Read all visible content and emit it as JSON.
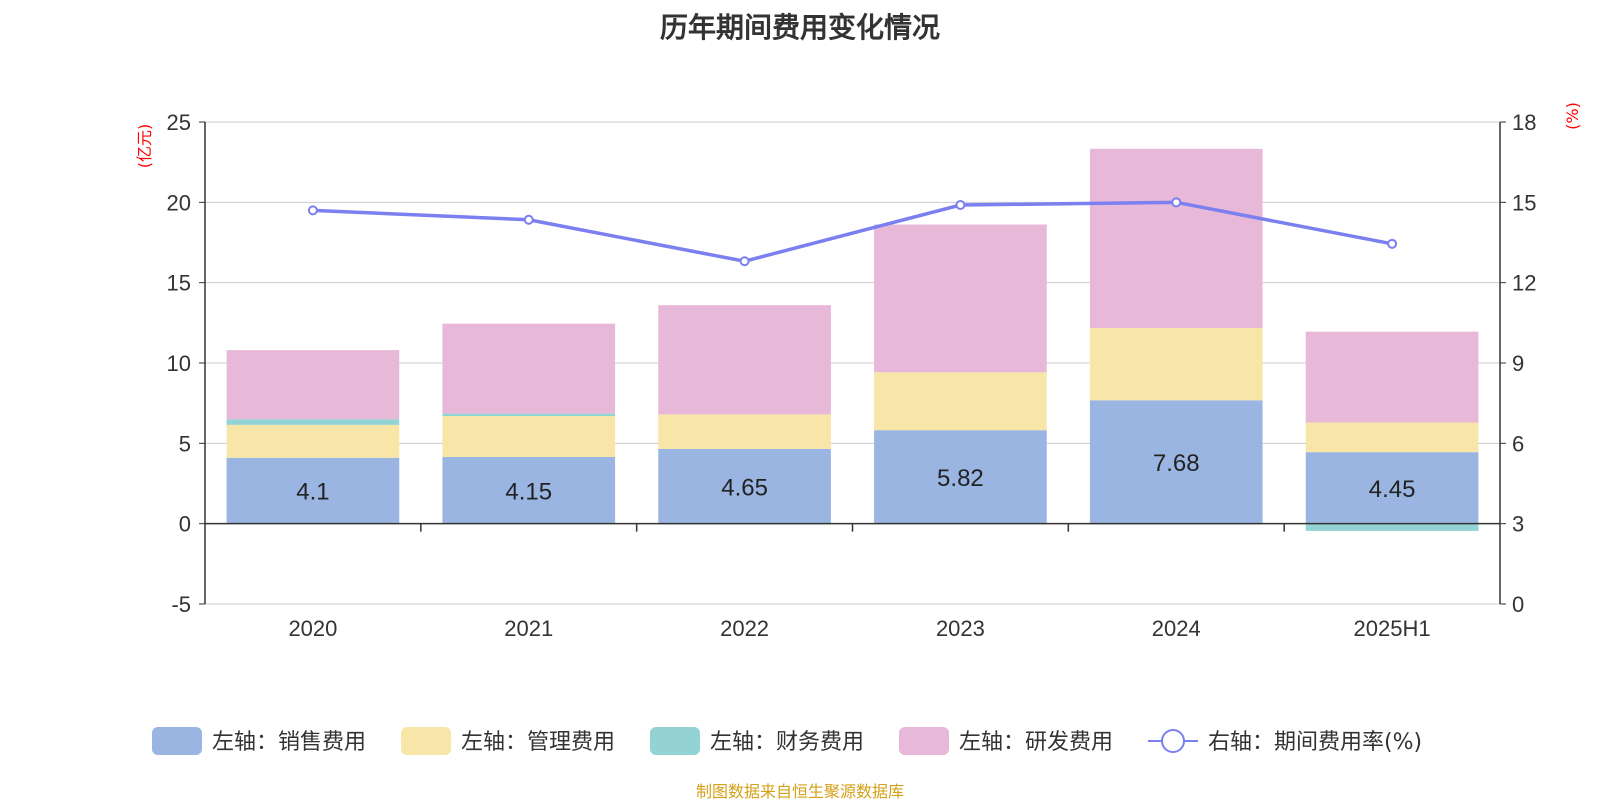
{
  "chart_data": {
    "type": "bar",
    "title": "历年期间费用变化情况",
    "source_note": "制图数据来自恒生聚源数据库",
    "categories": [
      "2020",
      "2021",
      "2022",
      "2023",
      "2024",
      "2025H1"
    ],
    "left_axis": {
      "unit": "(亿元)",
      "ylim": [
        -5,
        25
      ],
      "ticks": [
        -5,
        0,
        5,
        10,
        15,
        20,
        25
      ]
    },
    "right_axis": {
      "unit": "(%)",
      "ylim": [
        0,
        18
      ],
      "ticks": [
        0,
        3,
        6,
        9,
        12,
        15,
        18
      ]
    },
    "grid": true,
    "legend_position": "bottom",
    "series": [
      {
        "name": "左轴：销售费用",
        "kind": "bar",
        "axis": "left",
        "color": "#9ab5e1",
        "values": [
          4.1,
          4.15,
          4.65,
          5.82,
          7.68,
          4.45
        ],
        "show_labels": true
      },
      {
        "name": "左轴：管理费用",
        "kind": "bar",
        "axis": "left",
        "color": "#f8e6a8",
        "values": [
          2.05,
          2.55,
          2.15,
          3.6,
          4.5,
          1.85
        ]
      },
      {
        "name": "左轴：财务费用",
        "kind": "bar",
        "axis": "left",
        "color": "#94d3d4",
        "values": [
          0.35,
          0.15,
          -0.05,
          0.0,
          -0.05,
          -0.45
        ]
      },
      {
        "name": "左轴：研发费用",
        "kind": "bar",
        "axis": "left",
        "color": "#e8b8d8",
        "values": [
          4.3,
          5.6,
          6.8,
          9.2,
          11.15,
          5.65
        ]
      },
      {
        "name": "右轴：期间费用率(%)",
        "kind": "line",
        "axis": "right",
        "color": "#7b7ff0",
        "values": [
          14.7,
          14.35,
          12.8,
          14.9,
          15.0,
          13.45
        ]
      }
    ]
  }
}
